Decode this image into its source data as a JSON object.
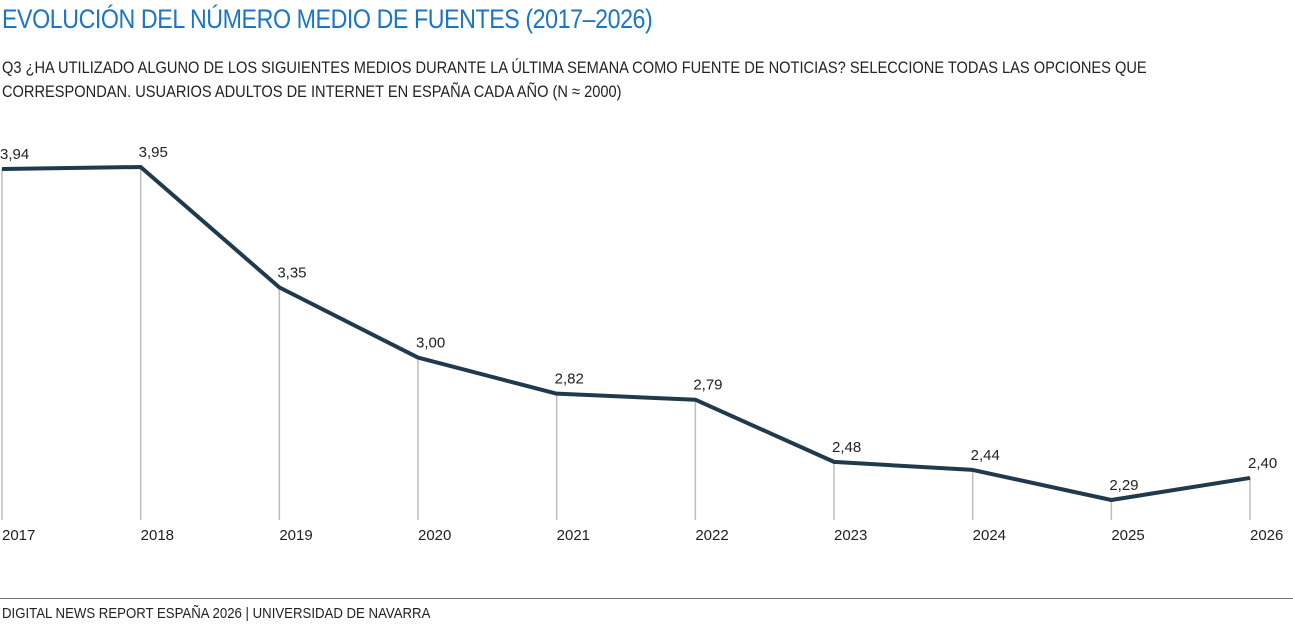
{
  "chart_data": {
    "type": "line",
    "title": "EVOLUCIÓN DEL NÚMERO MEDIO DE FUENTES (2017–2026)",
    "subtitle": "Q3 ¿HA UTILIZADO ALGUNO DE LOS SIGUIENTES MEDIOS DURANTE LA ÚLTIMA SEMANA COMO FUENTE DE NOTICIAS? SELECCIONE TODAS LAS OPCIONES QUE CORRESPONDAN. USUARIOS ADULTOS DE INTERNET EN ESPAÑA CADA AÑO (N ≈ 2000)",
    "source": "DIGITAL NEWS REPORT ESPAÑA 2026 | UNIVERSIDAD DE NAVARRA",
    "categories": [
      "2017",
      "2018",
      "2019",
      "2020",
      "2021",
      "2022",
      "2023",
      "2024",
      "2025",
      "2026"
    ],
    "values": [
      3.94,
      3.95,
      3.35,
      3.0,
      2.82,
      2.79,
      2.48,
      2.44,
      2.29,
      2.4
    ],
    "value_labels": [
      "3,94",
      "3,95",
      "3,35",
      "3,00",
      "2,82",
      "2,79",
      "2,48",
      "2,44",
      "2,29",
      "2,40"
    ],
    "color": "#1f3a4d"
  }
}
